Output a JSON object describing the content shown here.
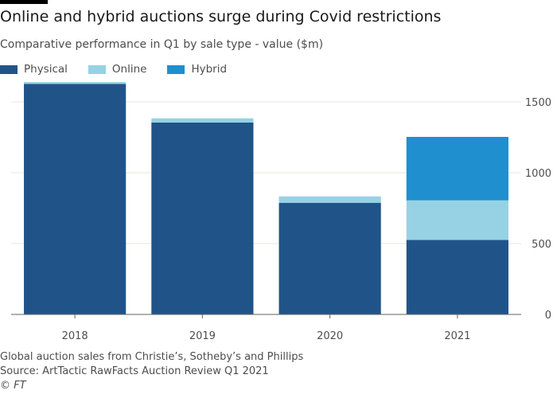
{
  "title": "Online and hybrid auctions surge during Covid restrictions",
  "subtitle": "Comparative performance in Q1 by sale type - value ($m)",
  "footer": {
    "note": "Global auction sales from Christie’s, Sotheby’s and Phillips",
    "source": "Source: ArtTactic RawFacts Auction Review Q1 2021",
    "copyright": "© FT"
  },
  "chart_data": {
    "type": "bar",
    "stacked": true,
    "title": "Online and hybrid auctions surge during Covid restrictions",
    "subtitle": "Comparative performance in Q1 by sale type - value ($m)",
    "categories": [
      "2018",
      "2019",
      "2020",
      "2021"
    ],
    "series": [
      {
        "name": "Physical",
        "color": "#205489",
        "values": [
          1627,
          1354,
          788,
          526
        ]
      },
      {
        "name": "Online",
        "color": "#96d2e3",
        "values": [
          13,
          30,
          45,
          279
        ]
      },
      {
        "name": "Hybrid",
        "color": "#1f8fcf",
        "values": [
          0,
          0,
          0,
          448
        ]
      }
    ],
    "yticks": [
      "0",
      "500",
      "1000",
      "1500"
    ],
    "ylim": [
      0,
      1650
    ],
    "y_axis_side": "right",
    "grid": true,
    "legend": "top-left"
  }
}
